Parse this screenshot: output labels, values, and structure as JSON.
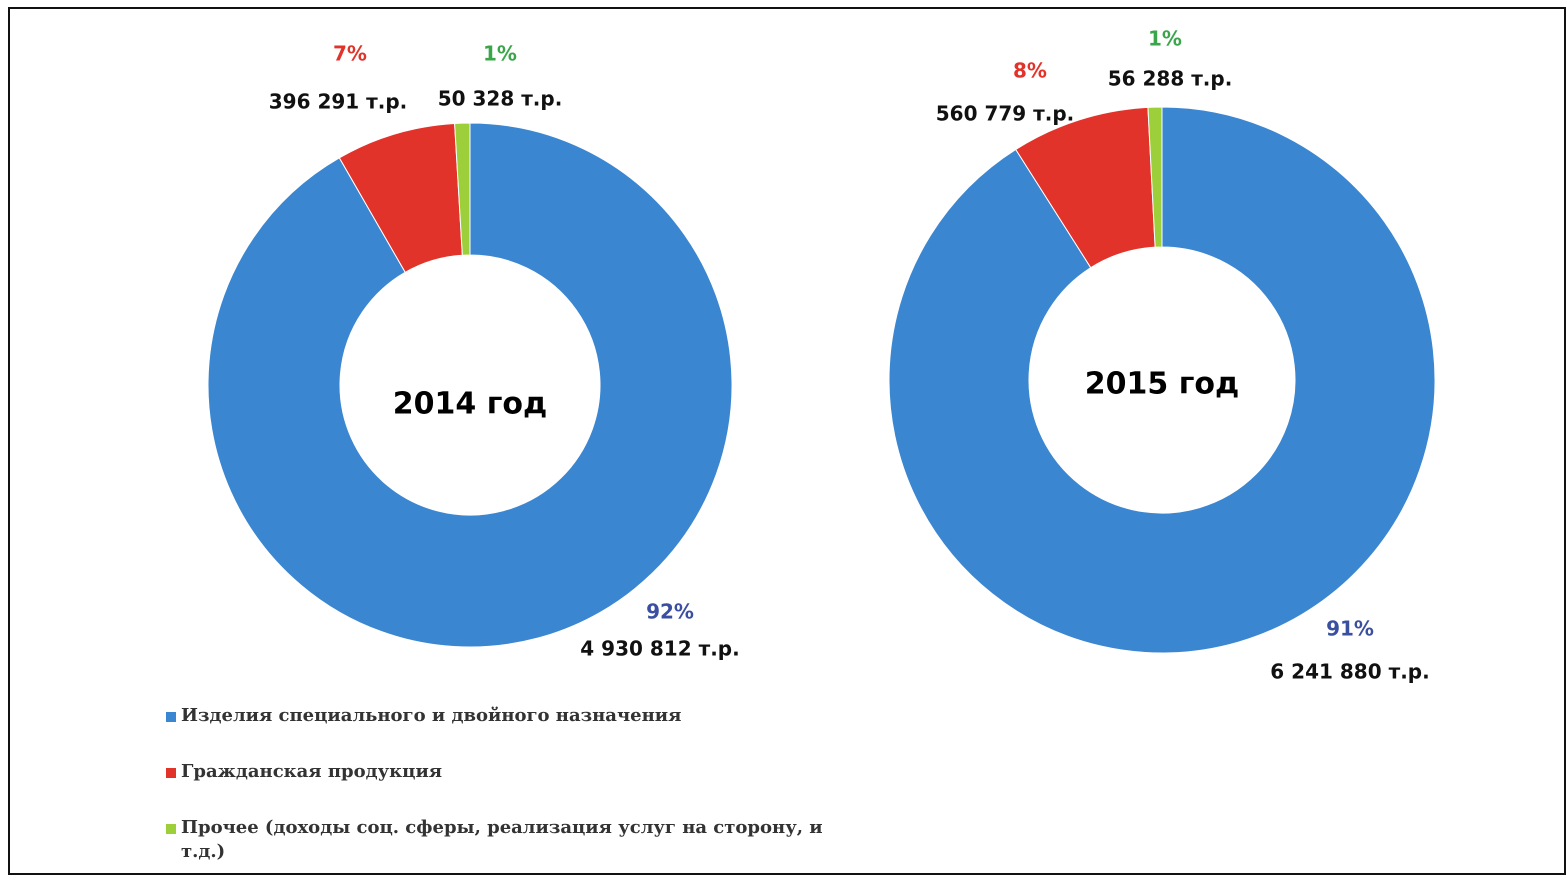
{
  "chart_data": [
    {
      "type": "donut",
      "title": "2014 год",
      "values": [
        4930812,
        396291,
        50328
      ],
      "value_labels": [
        "4 930 812 т.р.",
        "396 291 т.р.",
        "50 328 т.р."
      ],
      "percent_labels": [
        "92%",
        "7%",
        "1%"
      ],
      "colors": [
        "#3b86d0",
        "#e2332a",
        "#9ccf3a"
      ]
    },
    {
      "type": "donut",
      "title": "2015 год",
      "values": [
        6241880,
        560779,
        56288
      ],
      "value_labels": [
        "6 241 880 т.р.",
        "560 779 т.р.",
        "56 288 т.р."
      ],
      "percent_labels": [
        "91%",
        "8%",
        "1%"
      ],
      "colors": [
        "#3b86d0",
        "#e2332a",
        "#9ccf3a"
      ]
    }
  ],
  "legend": {
    "entries": [
      "Изделия специального и двойного назначения",
      "Гражданская продукция",
      "Прочее (доходы соц. сферы, реализация услуг на сторону, и т.д.)"
    ],
    "colors": [
      "#3b86d0",
      "#e2332a",
      "#9ccf3a"
    ]
  }
}
